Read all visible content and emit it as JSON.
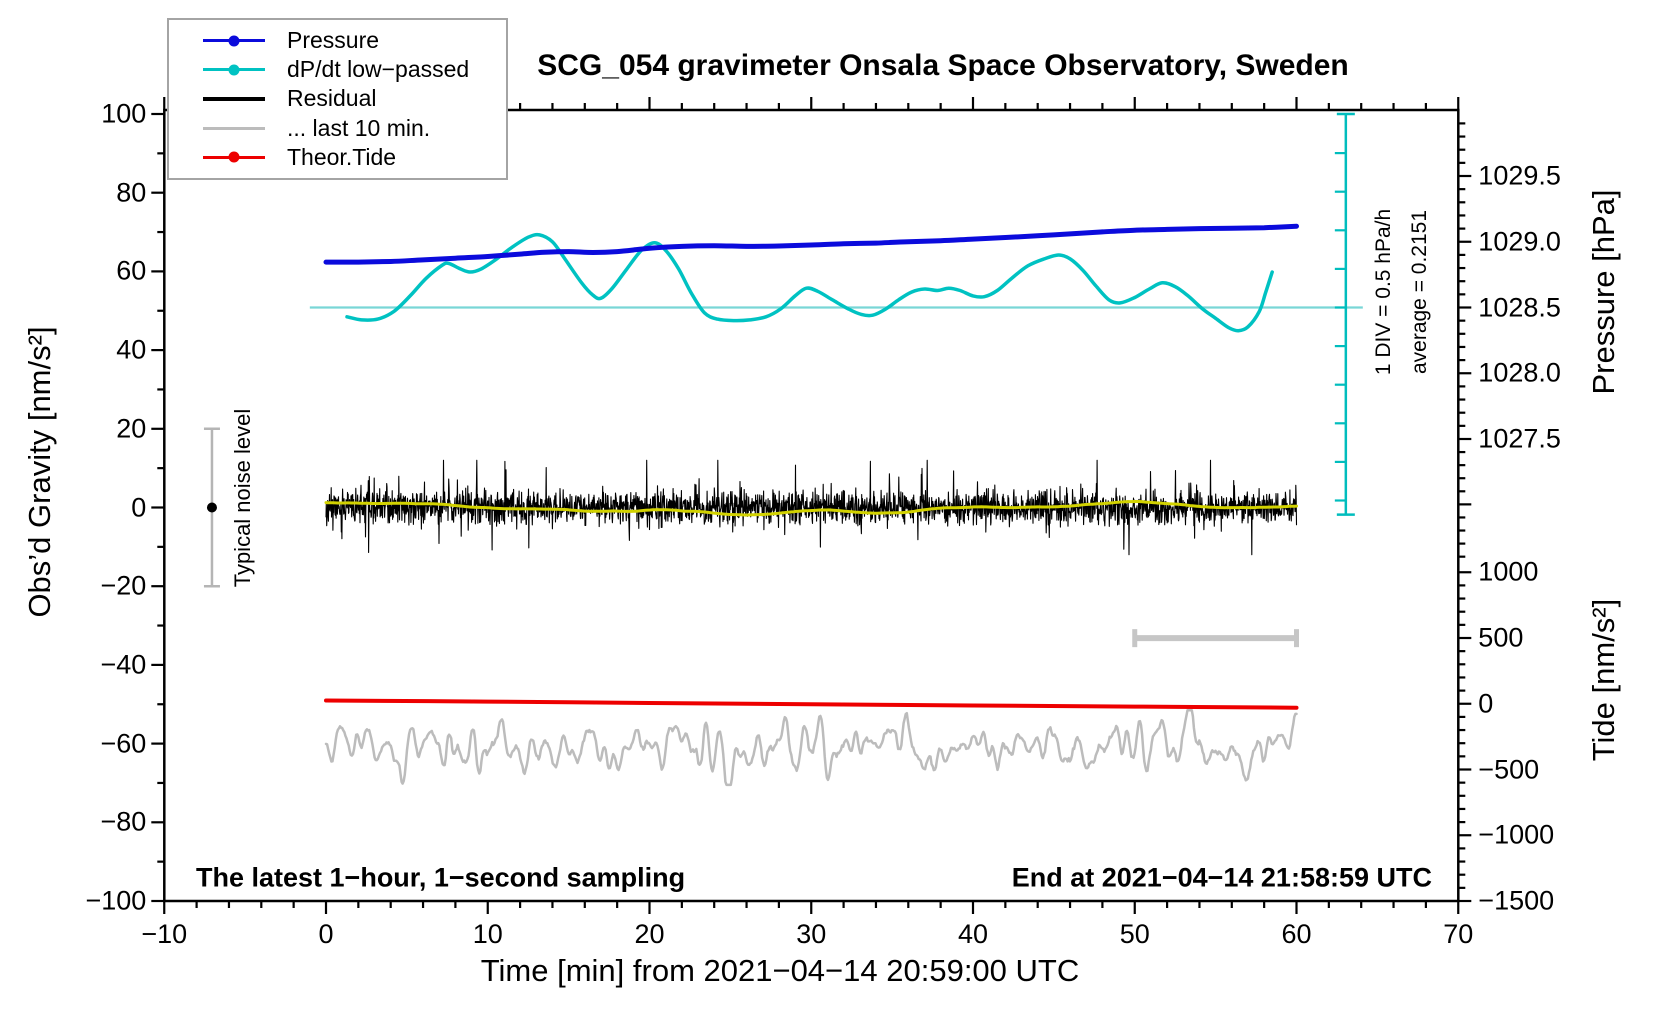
{
  "title": "SCG_054 gravimeter Onsala Space Observatory, Sweden",
  "legend": {
    "items": [
      {
        "label": "Pressure",
        "color": "#0b0bdc",
        "dot": true,
        "thickness": 3
      },
      {
        "label": "dP/dt low−passed",
        "color": "#00c2c2",
        "dot": true,
        "thickness": 3
      },
      {
        "label": "Residual",
        "color": "#000000",
        "dot": false,
        "thickness": 4
      },
      {
        "label": "... last 10 min.",
        "color": "#bcbcbc",
        "dot": false,
        "thickness": 3
      },
      {
        "label": "Theor.Tide",
        "color": "#ed0000",
        "dot": true,
        "thickness": 3
      }
    ]
  },
  "annotations": {
    "div_note": "1 DIV = 0.5 hPa/h",
    "average_note": "average = 0.2151",
    "noise_note": "Typical noise level",
    "sampling_note": "The latest 1−hour, 1−second sampling",
    "end_note": "End at 2021−04−14 21:58:59 UTC"
  },
  "chart_data": {
    "type": "line",
    "title": "SCG_054 gravimeter Onsala Space Observatory, Sweden",
    "x": {
      "label": "Time [min] from 2021−04−14 20:59:00 UTC",
      "range": [
        -10,
        70
      ],
      "major_ticks": [
        -10,
        0,
        10,
        20,
        30,
        40,
        50,
        60,
        70
      ],
      "major_tick_labels": [
        "−10",
        "0",
        "10",
        "20",
        "30",
        "40",
        "50",
        "60",
        "70"
      ],
      "minor_step": 2
    },
    "y_gravity": {
      "label": "Obs’d Gravity [nm/s²]",
      "range": [
        -100,
        100
      ],
      "major_ticks": [
        -100,
        -80,
        -60,
        -40,
        -20,
        0,
        20,
        40,
        60,
        80,
        100
      ],
      "major_tick_labels": [
        "−100",
        "−80",
        "−60",
        "−40",
        "−20",
        "0",
        "20",
        "40",
        "60",
        "80",
        "100"
      ],
      "minor_step": 10
    },
    "y_pressure": {
      "label": "Pressure [hPa]",
      "major_ticks": [
        1029.5,
        1029.0,
        1028.5,
        1028.0,
        1027.5
      ],
      "major_tick_labels": [
        "1029.5",
        "1029.0",
        "1028.5",
        "1028.0",
        "1027.5"
      ],
      "minor_step": 0.1
    },
    "y_tide": {
      "label": "Tide [nm/s²]",
      "major_ticks": [
        1000,
        500,
        0,
        -500,
        -1000,
        -1500
      ],
      "major_tick_labels": [
        "1000",
        "500",
        "0",
        "−500",
        "−1000",
        "−1500"
      ],
      "minor_step": 100
    },
    "series": [
      {
        "name": "Pressure",
        "axis": "pressure",
        "color": "#0b0bdc",
        "width": 5,
        "points": [
          [
            0,
            1028.845
          ],
          [
            2,
            1028.845
          ],
          [
            4,
            1028.85
          ],
          [
            6,
            1028.862
          ],
          [
            8,
            1028.875
          ],
          [
            10,
            1028.888
          ],
          [
            12,
            1028.906
          ],
          [
            13.5,
            1028.92
          ],
          [
            15,
            1028.925
          ],
          [
            16.5,
            1028.918
          ],
          [
            18,
            1028.925
          ],
          [
            20,
            1028.95
          ],
          [
            22,
            1028.965
          ],
          [
            24,
            1028.97
          ],
          [
            26,
            1028.965
          ],
          [
            28,
            1028.968
          ],
          [
            30,
            1028.975
          ],
          [
            32,
            1028.985
          ],
          [
            34,
            1028.99
          ],
          [
            36,
            1029.0
          ],
          [
            38,
            1029.008
          ],
          [
            40,
            1029.02
          ],
          [
            42,
            1029.032
          ],
          [
            44,
            1029.045
          ],
          [
            46,
            1029.06
          ],
          [
            48,
            1029.075
          ],
          [
            50,
            1029.088
          ],
          [
            52,
            1029.094
          ],
          [
            54,
            1029.1
          ],
          [
            56,
            1029.102
          ],
          [
            58,
            1029.107
          ],
          [
            60,
            1029.118
          ]
        ]
      },
      {
        "name": "dP/dt low−passed",
        "axis": "dpdt",
        "color": "#00c2c2",
        "width": 3.5,
        "average_hpa_per_h": 0.2151,
        "div_hpa_per_h": 0.5,
        "ref_line": {
          "value": 0,
          "t_start": -1,
          "t_end": 64.1,
          "color": "#79d6d6",
          "width": 2.2
        },
        "scale_bar": {
          "t": 63.05,
          "color": "#00bdbd",
          "width": 2.5,
          "divisions": 10
        },
        "points": [
          [
            1.3,
            -0.12
          ],
          [
            2.2,
            -0.16
          ],
          [
            3.2,
            -0.15
          ],
          [
            4.2,
            -0.05
          ],
          [
            5.2,
            0.15
          ],
          [
            6.2,
            0.38
          ],
          [
            7.2,
            0.55
          ],
          [
            7.6,
            0.57
          ],
          [
            8.3,
            0.5
          ],
          [
            8.9,
            0.46
          ],
          [
            9.6,
            0.5
          ],
          [
            10.5,
            0.62
          ],
          [
            11.5,
            0.78
          ],
          [
            12.5,
            0.91
          ],
          [
            13.2,
            0.94
          ],
          [
            14,
            0.85
          ],
          [
            14.8,
            0.62
          ],
          [
            15.8,
            0.32
          ],
          [
            16.5,
            0.16
          ],
          [
            17,
            0.12
          ],
          [
            17.7,
            0.25
          ],
          [
            18.6,
            0.5
          ],
          [
            19.5,
            0.74
          ],
          [
            20.3,
            0.84
          ],
          [
            21,
            0.74
          ],
          [
            21.8,
            0.5
          ],
          [
            22.6,
            0.18
          ],
          [
            23.4,
            -0.07
          ],
          [
            24.2,
            -0.15
          ],
          [
            25.2,
            -0.17
          ],
          [
            26.2,
            -0.16
          ],
          [
            27.2,
            -0.12
          ],
          [
            28.1,
            -0.02
          ],
          [
            29,
            0.15
          ],
          [
            29.7,
            0.25
          ],
          [
            30.4,
            0.21
          ],
          [
            31.3,
            0.1
          ],
          [
            32.3,
            -0.02
          ],
          [
            33.1,
            -0.09
          ],
          [
            33.8,
            -0.1
          ],
          [
            34.6,
            -0.02
          ],
          [
            35.4,
            0.1
          ],
          [
            36.2,
            0.2
          ],
          [
            37,
            0.24
          ],
          [
            37.8,
            0.22
          ],
          [
            38.5,
            0.25
          ],
          [
            39.2,
            0.22
          ],
          [
            40,
            0.15
          ],
          [
            40.7,
            0.14
          ],
          [
            41.5,
            0.22
          ],
          [
            42.4,
            0.38
          ],
          [
            43.4,
            0.54
          ],
          [
            44.4,
            0.63
          ],
          [
            45.3,
            0.68
          ],
          [
            46,
            0.63
          ],
          [
            46.8,
            0.48
          ],
          [
            47.6,
            0.28
          ],
          [
            48.4,
            0.1
          ],
          [
            49.1,
            0.06
          ],
          [
            50,
            0.13
          ],
          [
            50.9,
            0.24
          ],
          [
            51.7,
            0.32
          ],
          [
            52.5,
            0.27
          ],
          [
            53.3,
            0.15
          ],
          [
            54.2,
            -0.02
          ],
          [
            55,
            -0.14
          ],
          [
            55.8,
            -0.26
          ],
          [
            56.4,
            -0.3
          ],
          [
            57,
            -0.25
          ],
          [
            57.7,
            -0.05
          ],
          [
            58.1,
            0.2
          ],
          [
            58.5,
            0.46
          ]
        ]
      },
      {
        "name": "Residual",
        "axis": "gravity",
        "color": "#000000",
        "width": 1.1,
        "synthetic_noise": {
          "seed": 11,
          "sigma": 2.1,
          "spike_prob": 0.055,
          "spike_gain": 2.6,
          "clamp": 12,
          "n": 2800,
          "t_range": [
            0,
            60
          ],
          "center": 0
        }
      },
      {
        "name": "Residual smoothed",
        "axis": "gravity",
        "color": "#d2d200",
        "width": 3,
        "synthetic_wave": {
          "seed": 7,
          "amp": 0.9,
          "n": 420,
          "smooth": 31,
          "t_range": [
            0,
            60
          ],
          "center": 0
        }
      },
      {
        "name": "... last 10 min.",
        "axis": "gravity",
        "color": "#bcbcbc",
        "width": 2.5,
        "synthetic_noise": {
          "seed": 13,
          "sigma": 3.4,
          "spike_prob": 0.0,
          "spike_gain": 1,
          "clamp": 9.5,
          "n": 900,
          "smooth": 5,
          "t_range": [
            0,
            60
          ],
          "center": -61
        }
      },
      {
        "name": "Theor.Tide",
        "axis": "tide",
        "color": "#ed0000",
        "width": 4,
        "points": [
          [
            0,
            25
          ],
          [
            10,
            16
          ],
          [
            20,
            6
          ],
          [
            30,
            -4
          ],
          [
            40,
            -13
          ],
          [
            50,
            -22
          ],
          [
            60,
            -30
          ]
        ]
      }
    ],
    "markers": {
      "noise_errorbar": {
        "t": -7.05,
        "center": 0,
        "half_range": 20,
        "color": "#b5b5b5",
        "dot_color": "#000000"
      },
      "ten_min_scalebar": {
        "t_start": 50,
        "t_end": 60,
        "gravity": -33.2,
        "color": "#c6c6c6"
      }
    },
    "layout_hints": {
      "grid": false,
      "legend_position": "top-left",
      "frame": "box with outward ticks"
    }
  }
}
